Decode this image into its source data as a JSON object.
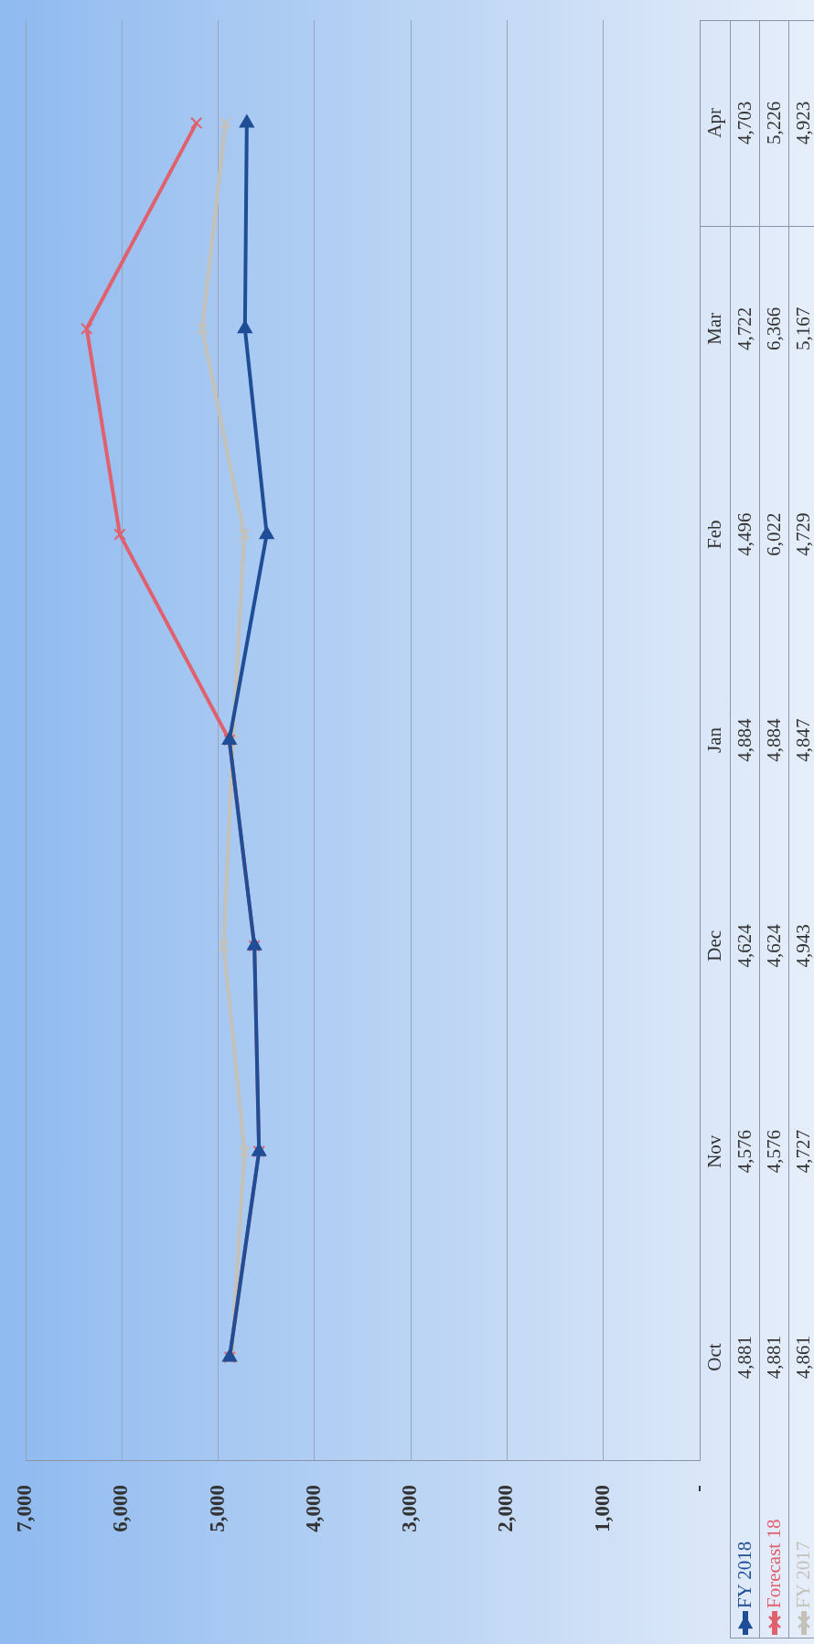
{
  "chart_data": {
    "type": "line",
    "orientation": "horizontal",
    "categories": [
      "Apr",
      "Mar",
      "Feb",
      "Jan",
      "Dec",
      "Nov",
      "Oct"
    ],
    "series": [
      {
        "name": "FY 2018",
        "color": "#1f4e96",
        "marker": "triangle",
        "values": [
          4703,
          4722,
          4496,
          4884,
          4624,
          4576,
          4881
        ],
        "value_labels": [
          "4,703",
          "4,722",
          "4,496",
          "4,884",
          "4,624",
          "4,576",
          "4,881"
        ]
      },
      {
        "name": "Forecast 18",
        "color": "#e0606e",
        "marker": "cross",
        "values": [
          5226,
          6366,
          6022,
          4884,
          4624,
          4576,
          4881
        ],
        "value_labels": [
          "5,226",
          "6,366",
          "6,022",
          "4,884",
          "4,624",
          "4,576",
          "4,881"
        ]
      },
      {
        "name": "FY 2017",
        "color": "#c4c2b8",
        "marker": "cross",
        "values": [
          4923,
          5167,
          4729,
          4847,
          4943,
          4727,
          4861
        ],
        "value_labels": [
          "4,923",
          "5,167",
          "4,729",
          "4,847",
          "4,943",
          "4,727",
          "4,861"
        ]
      }
    ],
    "xlim": [
      7000,
      0
    ],
    "xticks": [
      {
        "value": 7000,
        "label": "7,000"
      },
      {
        "value": 6000,
        "label": "6,000"
      },
      {
        "value": 5000,
        "label": "5,000"
      },
      {
        "value": 4000,
        "label": "4,000"
      },
      {
        "value": 3000,
        "label": "3,000"
      },
      {
        "value": 2000,
        "label": "2,000"
      },
      {
        "value": 1000,
        "label": "1,000"
      },
      {
        "value": 0,
        "label": "-"
      }
    ],
    "grid": "x",
    "legend": "bottom"
  }
}
